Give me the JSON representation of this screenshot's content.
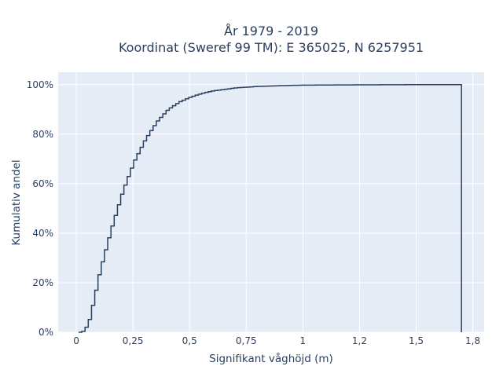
{
  "chart_data": {
    "type": "line",
    "title": "År 1979 - 2019",
    "subtitle": "Koordinat (Sweref 99 TM): E 365025, N 6257951",
    "xlabel": "Signifikant våghöjd (m)",
    "ylabel": "Kumulativ andel",
    "xlim": [
      -0.08,
      1.8
    ],
    "ylim": [
      0,
      1.05
    ],
    "x_ticks": [
      0,
      0.25,
      0.5,
      0.75,
      1,
      1.25,
      1.5,
      1.75
    ],
    "x_tick_labels": [
      "0",
      "0,25",
      "0,5",
      "0,75",
      "1",
      "1,2",
      "1,5",
      "1,8"
    ],
    "y_ticks": [
      0,
      0.2,
      0.4,
      0.6,
      0.8,
      1.0
    ],
    "y_tick_labels": [
      "0%",
      "20%",
      "40%",
      "60%",
      "80%",
      "100%"
    ],
    "grid": true,
    "line_color": "#2a3f5f",
    "plot_background": "#e5ecf6",
    "series": [
      {
        "x": [
          0.01,
          0.03,
          0.05,
          0.07,
          0.1,
          0.15,
          0.2,
          0.25,
          0.3,
          0.35,
          0.4,
          0.45,
          0.5,
          0.55,
          0.6,
          0.7,
          0.8,
          0.9,
          1.0,
          1.2,
          1.5,
          1.7
        ],
        "y": [
          0.0,
          0.005,
          0.04,
          0.12,
          0.25,
          0.42,
          0.57,
          0.69,
          0.78,
          0.85,
          0.9,
          0.93,
          0.95,
          0.965,
          0.975,
          0.987,
          0.993,
          0.996,
          0.998,
          0.999,
          1.0,
          1.0
        ]
      }
    ]
  }
}
